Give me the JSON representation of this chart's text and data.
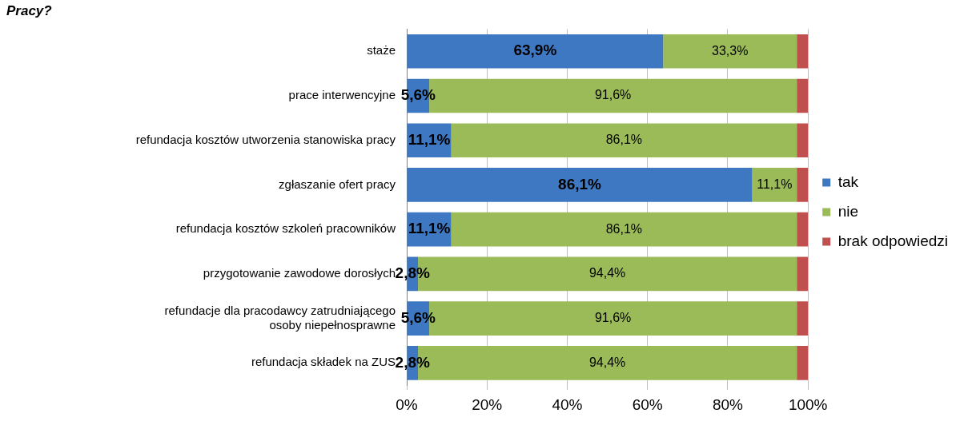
{
  "chart_data": {
    "type": "bar",
    "orientation": "horizontal",
    "stacked": true,
    "title": "Pracy?",
    "categories": [
      "staże",
      "prace interwencyjne",
      "refundacja kosztów utworzenia stanowiska pracy",
      "zgłaszanie ofert pracy",
      "refundacja kosztów szkoleń pracowników",
      "przygotowanie zawodowe dorosłych",
      "refundacje dla pracodawcy zatrudniającego osoby niepełnosprawne",
      "refundacja składek na ZUS"
    ],
    "series": [
      {
        "name": "tak",
        "color": "#3f78c2",
        "values": [
          63.9,
          5.6,
          11.1,
          86.1,
          11.1,
          2.8,
          5.6,
          2.8
        ],
        "value_labels": [
          "63,9%",
          "5,6%",
          "11,1%",
          "86,1%",
          "11,1%",
          "2,8%",
          "5,6%",
          "2,8%"
        ]
      },
      {
        "name": "nie",
        "color": "#9bbb59",
        "values": [
          33.3,
          91.6,
          86.1,
          11.1,
          86.1,
          94.4,
          91.6,
          94.4
        ],
        "value_labels": [
          "33,3%",
          "91,6%",
          "86,1%",
          "11,1%",
          "86,1%",
          "94,4%",
          "91,6%",
          "94,4%"
        ]
      },
      {
        "name": "brak odpowiedzi",
        "color": "#c0504d",
        "values": [
          2.8,
          2.8,
          2.8,
          2.8,
          2.8,
          2.8,
          2.8,
          2.8
        ],
        "value_labels": [
          null,
          null,
          null,
          null,
          null,
          null,
          null,
          null
        ]
      }
    ],
    "xlim": [
      0,
      100
    ],
    "xticks": [
      {
        "value": 0,
        "label": "0%"
      },
      {
        "value": 20,
        "label": "20%"
      },
      {
        "value": 40,
        "label": "40%"
      },
      {
        "value": 60,
        "label": "60%"
      },
      {
        "value": 80,
        "label": "80%"
      },
      {
        "value": 100,
        "label": "100%"
      }
    ],
    "grid": "x",
    "legend": "right"
  }
}
